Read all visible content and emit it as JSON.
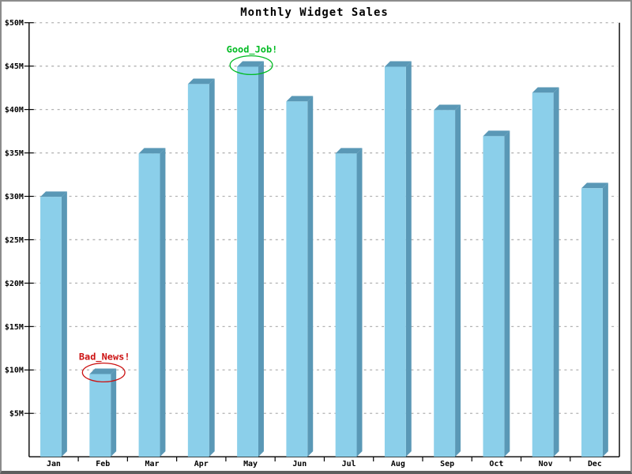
{
  "window": {
    "background_color": "#ffffff",
    "frame_border_color": "#8c8c8c"
  },
  "chart_data": {
    "type": "bar",
    "title": "Monthly Widget Sales",
    "categories": [
      "Jan",
      "Feb",
      "Mar",
      "Apr",
      "May",
      "Jun",
      "Jul",
      "Aug",
      "Sep",
      "Oct",
      "Nov",
      "Dec"
    ],
    "values": [
      30.2,
      9.8,
      35.2,
      43.2,
      45.2,
      41.2,
      35.2,
      45.2,
      40.2,
      37.2,
      42.2,
      31.2
    ],
    "value_unit": "millions USD",
    "xlabel": "",
    "ylabel": "",
    "ylim": [
      0,
      50
    ],
    "y_ticks": [
      5,
      10,
      15,
      20,
      25,
      30,
      35,
      40,
      45,
      50
    ],
    "y_tick_labels": [
      "$5M",
      "$10M",
      "$15M",
      "$20M",
      "$25M",
      "$30M",
      "$35M",
      "$40M",
      "$45M",
      "$50M"
    ],
    "grid": "horizontal-dashed",
    "legend": "none",
    "style_3d": true,
    "colors": {
      "bar_front": "#8bcfea",
      "bar_side": "#5a98b6",
      "gridline": "#b2b2b2",
      "axis": "#000000",
      "text": "#000000"
    },
    "annotations": [
      {
        "text": "Good_Job!",
        "target_month": "May",
        "color": "#00bb22",
        "shape": "ellipse-around-bar-top"
      },
      {
        "text": "Bad_News!",
        "target_month": "Feb",
        "color": "#cc1111",
        "shape": "ellipse-around-bar-top"
      }
    ]
  }
}
